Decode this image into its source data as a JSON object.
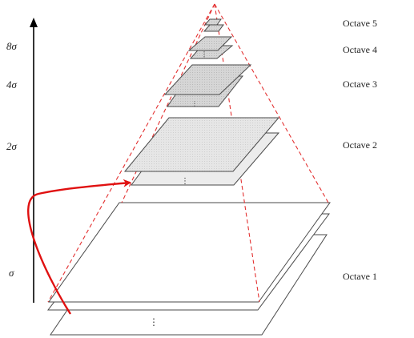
{
  "octaves": [
    {
      "label": "Octave 5"
    },
    {
      "label": "Octave 4"
    },
    {
      "label": "Octave 3"
    },
    {
      "label": "Octave 2"
    },
    {
      "label": "Octave 1"
    }
  ],
  "scale_axis": {
    "labels": [
      "8σ",
      "4σ",
      "2σ",
      "σ"
    ]
  },
  "colors": {
    "dashed_lines": "#e33030",
    "arrow": "#e01010",
    "axis": "#000000",
    "layer_outline": "#4a4a4a",
    "layer_fill_dark": "#cfcfcf",
    "layer_fill_mid": "#dcdcdc",
    "layer_fill_light": "#ffffff"
  },
  "ellipsis_glyph": "⋮"
}
